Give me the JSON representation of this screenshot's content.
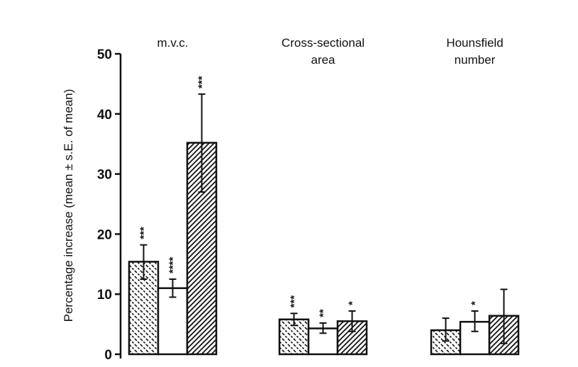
{
  "chart_data": {
    "type": "bar",
    "ylabel": "Percentage increase (mean ± s.E. of mean)",
    "ylim": [
      0,
      50
    ],
    "yticks": [
      0,
      10,
      20,
      30,
      40,
      50
    ],
    "ytick_labels": [
      "0",
      "10",
      "20",
      "30",
      "40",
      "50"
    ],
    "groups": [
      {
        "label_lines": [
          "m.v.c."
        ],
        "bars": [
          {
            "pattern": "dashed-backslash",
            "value": 15.4,
            "err_low": 12.5,
            "err_high": 18.2,
            "stars": "***"
          },
          {
            "pattern": "open",
            "value": 11.0,
            "err_low": 9.5,
            "err_high": 12.5,
            "stars": "****"
          },
          {
            "pattern": "hatch-forward",
            "value": 35.2,
            "err_low": 27.0,
            "err_high": 43.3,
            "stars": "***"
          }
        ]
      },
      {
        "label_lines": [
          "Cross-sectional",
          "area"
        ],
        "bars": [
          {
            "pattern": "dashed-backslash",
            "value": 5.8,
            "err_low": 4.8,
            "err_high": 6.8,
            "stars": "***"
          },
          {
            "pattern": "open",
            "value": 4.3,
            "err_low": 3.5,
            "err_high": 5.2,
            "stars": "**"
          },
          {
            "pattern": "hatch-forward",
            "value": 5.5,
            "err_low": 3.8,
            "err_high": 7.2,
            "stars": "*"
          }
        ]
      },
      {
        "label_lines": [
          "Hounsfield",
          "number"
        ],
        "bars": [
          {
            "pattern": "dashed-backslash",
            "value": 4.0,
            "err_low": 2.2,
            "err_high": 6.0,
            "stars": ""
          },
          {
            "pattern": "open",
            "value": 5.4,
            "err_low": 3.8,
            "err_high": 7.2,
            "stars": "*"
          },
          {
            "pattern": "hatch-forward",
            "value": 6.4,
            "err_low": 1.8,
            "err_high": 10.8,
            "stars": ""
          }
        ]
      }
    ]
  }
}
